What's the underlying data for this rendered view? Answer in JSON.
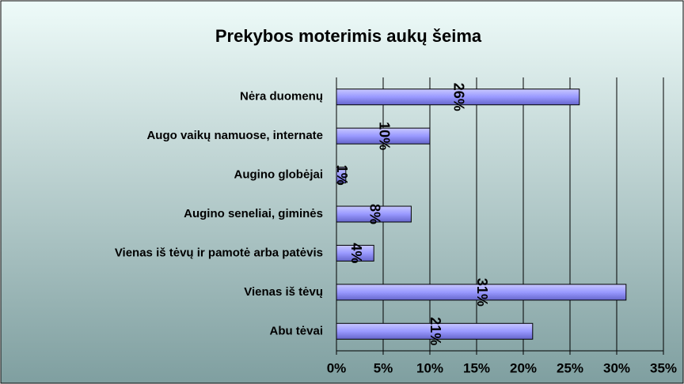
{
  "chart_data": {
    "type": "bar",
    "orientation": "horizontal",
    "title": "Prekybos moterimis aukų šeima",
    "categories": [
      "Nėra duomenų",
      "Augo vaikų namuose, internate",
      "Augino globėjai",
      "Augino seneliai, giminės",
      "Vienas iš tėvų ir pamotė arba patėvis",
      "Vienas iš tėvų",
      "Abu tėvai"
    ],
    "values": [
      26,
      10,
      1,
      8,
      4,
      31,
      21
    ],
    "value_labels": [
      "26%",
      "10%",
      "1%",
      "8%",
      "4%",
      "31%",
      "21%"
    ],
    "color": "#9999ff",
    "xlim": [
      0,
      35
    ],
    "xticks": [
      {
        "value": 0,
        "label": "0%"
      },
      {
        "value": 5,
        "label": "5%"
      },
      {
        "value": 10,
        "label": "10%"
      },
      {
        "value": 15,
        "label": "15%"
      },
      {
        "value": 20,
        "label": "20%"
      },
      {
        "value": 25,
        "label": "25%"
      },
      {
        "value": 30,
        "label": "30%"
      },
      {
        "value": 35,
        "label": "35%"
      }
    ],
    "grid": true
  }
}
